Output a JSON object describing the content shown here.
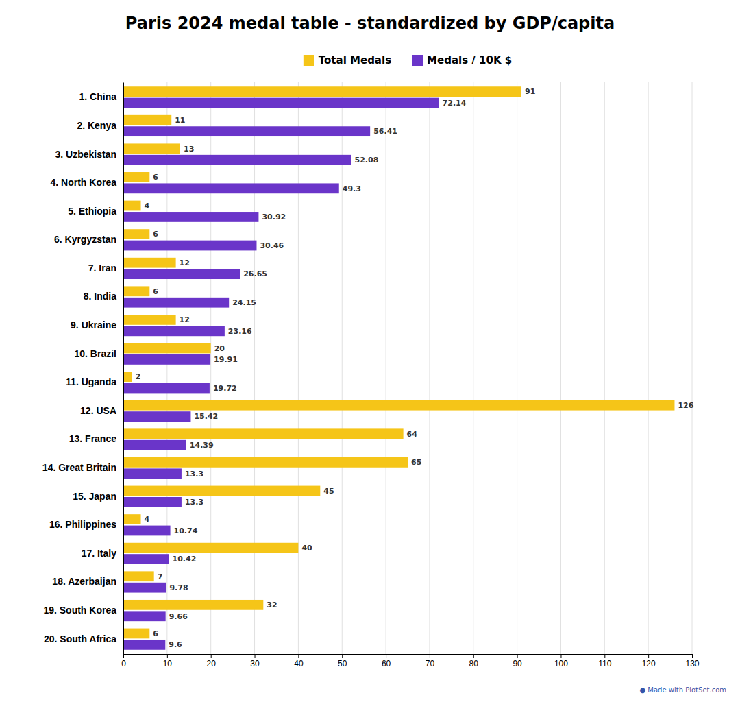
{
  "chart_data": {
    "type": "bar",
    "orientation": "horizontal",
    "title": "Paris 2024 medal table - standardized by GDP/capita",
    "categories": [
      "1. China",
      "2. Kenya",
      "3. Uzbekistan",
      "4. North Korea",
      "5. Ethiopia",
      "6. Kyrgyzstan",
      "7. Iran",
      "8. India",
      "9. Ukraine",
      "10. Brazil",
      "11. Uganda",
      "12. USA",
      "13. France",
      "14. Great Britain",
      "15. Japan",
      "16. Philippines",
      "17. Italy",
      "18. Azerbaijan",
      "19. South Korea",
      "20. South Africa"
    ],
    "series": [
      {
        "name": "Total Medals",
        "color": "#f5c518",
        "values": [
          91,
          11,
          13,
          6,
          4,
          6,
          12,
          6,
          12,
          20,
          2,
          126,
          64,
          65,
          45,
          4,
          40,
          7,
          32,
          6
        ]
      },
      {
        "name": "Medals / 10K $",
        "color": "#6a35c9",
        "values": [
          72.14,
          56.41,
          52.08,
          49.3,
          30.92,
          30.46,
          26.65,
          24.15,
          23.16,
          19.91,
          19.72,
          15.42,
          14.39,
          13.3,
          13.3,
          10.74,
          10.42,
          9.78,
          9.66,
          9.6
        ]
      }
    ],
    "xlim": [
      0,
      130
    ],
    "xticks": [
      0,
      10,
      20,
      30,
      40,
      50,
      60,
      70,
      80,
      90,
      100,
      110,
      120,
      130
    ],
    "grid": true,
    "legend": "top",
    "data_labels": true,
    "annotations": [
      "● Made with PlotSet.com"
    ]
  }
}
